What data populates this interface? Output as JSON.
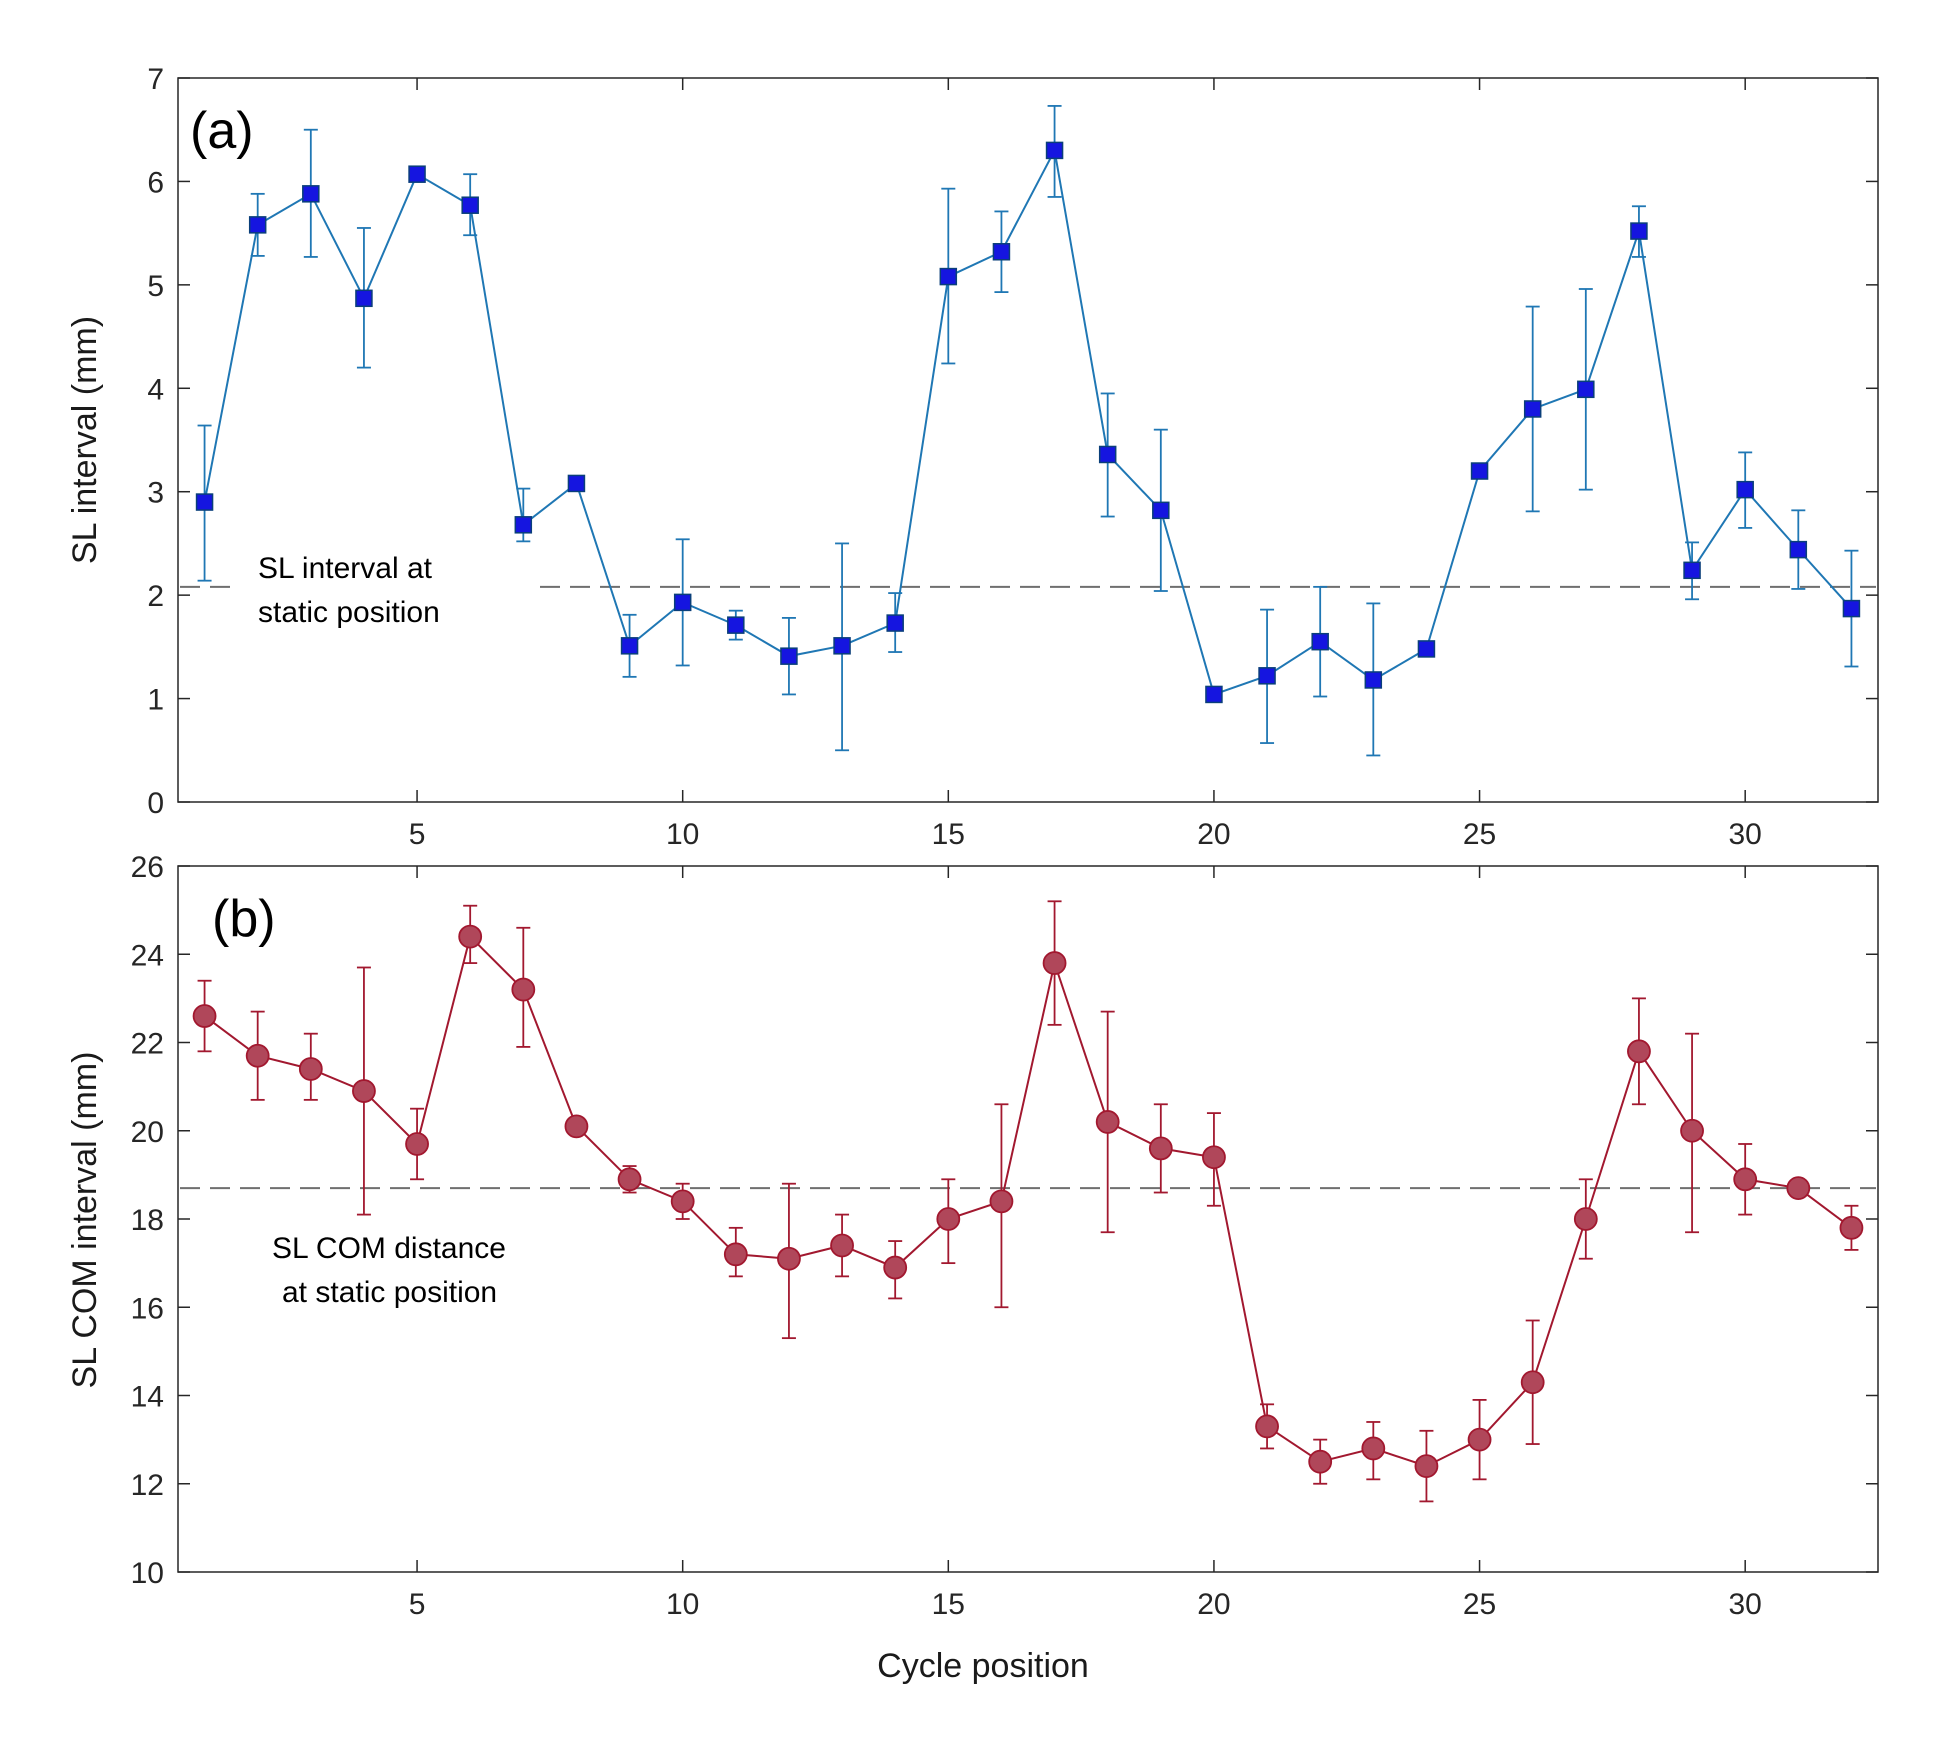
{
  "chart_data": [
    {
      "type": "line",
      "panel_label": "(a)",
      "ylabel": "SL interval (mm)",
      "xlabel": "",
      "xlim": [
        0.5,
        32.5
      ],
      "ylim": [
        0,
        7
      ],
      "xticks": [
        "5",
        "10",
        "15",
        "20",
        "25",
        "30"
      ],
      "yticks": [
        "0",
        "1",
        "2",
        "3",
        "4",
        "5",
        "6",
        "7"
      ],
      "marker": "square",
      "color": "#1f77b4",
      "marker_fill": "#1515e0",
      "reference_line": {
        "y": 2.08,
        "annotation": [
          "SL interval at",
          "static position"
        ]
      },
      "x": [
        1,
        2,
        3,
        4,
        5,
        6,
        7,
        8,
        9,
        10,
        11,
        12,
        13,
        14,
        15,
        16,
        17,
        18,
        19,
        20,
        21,
        22,
        23,
        24,
        25,
        26,
        27,
        28,
        29,
        30,
        31,
        32
      ],
      "values": [
        2.9,
        5.58,
        5.88,
        4.87,
        6.07,
        5.77,
        2.68,
        3.08,
        1.51,
        1.93,
        1.71,
        1.41,
        1.51,
        1.73,
        5.08,
        5.32,
        6.3,
        3.36,
        2.82,
        1.04,
        1.22,
        1.55,
        1.18,
        1.48,
        3.2,
        3.8,
        3.99,
        5.52,
        2.24,
        3.02,
        2.44,
        1.87
      ],
      "err_low": [
        2.14,
        5.28,
        5.27,
        4.2,
        6.02,
        5.48,
        2.52,
        3.03,
        1.21,
        1.32,
        1.57,
        1.04,
        0.5,
        1.45,
        4.24,
        4.93,
        5.85,
        2.76,
        2.04,
        1.0,
        0.57,
        1.02,
        0.45,
        1.44,
        3.14,
        2.81,
        3.02,
        5.27,
        1.96,
        2.65,
        2.06,
        1.31
      ],
      "err_high": [
        3.64,
        5.88,
        6.5,
        5.55,
        6.12,
        6.07,
        3.03,
        3.13,
        1.81,
        2.54,
        1.85,
        1.78,
        2.5,
        2.02,
        5.93,
        5.71,
        6.73,
        3.95,
        3.6,
        1.08,
        1.86,
        2.08,
        1.92,
        1.52,
        3.26,
        4.79,
        4.96,
        5.76,
        2.51,
        3.38,
        2.82,
        2.43
      ]
    },
    {
      "type": "line",
      "panel_label": "(b)",
      "ylabel": "SL COM interval (mm)",
      "xlabel": "Cycle position",
      "xlim": [
        0.5,
        32.5
      ],
      "ylim": [
        10,
        26
      ],
      "xticks": [
        "5",
        "10",
        "15",
        "20",
        "25",
        "30"
      ],
      "yticks": [
        "10",
        "12",
        "14",
        "16",
        "18",
        "20",
        "22",
        "24",
        "26"
      ],
      "marker": "circle",
      "color": "#a2182f",
      "marker_fill": "#b0475a",
      "reference_line": {
        "y": 18.7,
        "annotation": [
          "SL COM distance",
          "at static position"
        ]
      },
      "x": [
        1,
        2,
        3,
        4,
        5,
        6,
        7,
        8,
        9,
        10,
        11,
        12,
        13,
        14,
        15,
        16,
        17,
        18,
        19,
        20,
        21,
        22,
        23,
        24,
        25,
        26,
        27,
        28,
        29,
        30,
        31,
        32
      ],
      "values": [
        22.6,
        21.7,
        21.4,
        20.9,
        19.7,
        24.4,
        23.2,
        20.1,
        18.9,
        18.4,
        17.2,
        17.1,
        17.4,
        16.9,
        18.0,
        18.4,
        23.8,
        20.2,
        19.6,
        19.4,
        13.3,
        12.5,
        12.8,
        12.4,
        13.0,
        14.3,
        18.0,
        21.8,
        20.0,
        18.9,
        18.7,
        17.8
      ],
      "err_low": [
        21.8,
        20.7,
        20.7,
        18.1,
        18.9,
        23.8,
        21.9,
        20.0,
        18.6,
        18.0,
        16.7,
        15.3,
        16.7,
        16.2,
        17.0,
        16.0,
        22.4,
        17.7,
        18.6,
        18.3,
        12.8,
        12.0,
        12.1,
        11.6,
        12.1,
        12.9,
        17.1,
        20.6,
        17.7,
        18.1,
        18.6,
        17.3
      ],
      "err_high": [
        23.4,
        22.7,
        22.2,
        23.7,
        20.5,
        25.1,
        24.6,
        20.2,
        19.2,
        18.8,
        17.8,
        18.8,
        18.1,
        17.5,
        18.9,
        20.6,
        25.2,
        22.7,
        20.6,
        20.4,
        13.8,
        13.0,
        13.4,
        13.2,
        13.9,
        15.7,
        18.9,
        23.0,
        22.2,
        19.7,
        18.8,
        18.3
      ]
    }
  ]
}
